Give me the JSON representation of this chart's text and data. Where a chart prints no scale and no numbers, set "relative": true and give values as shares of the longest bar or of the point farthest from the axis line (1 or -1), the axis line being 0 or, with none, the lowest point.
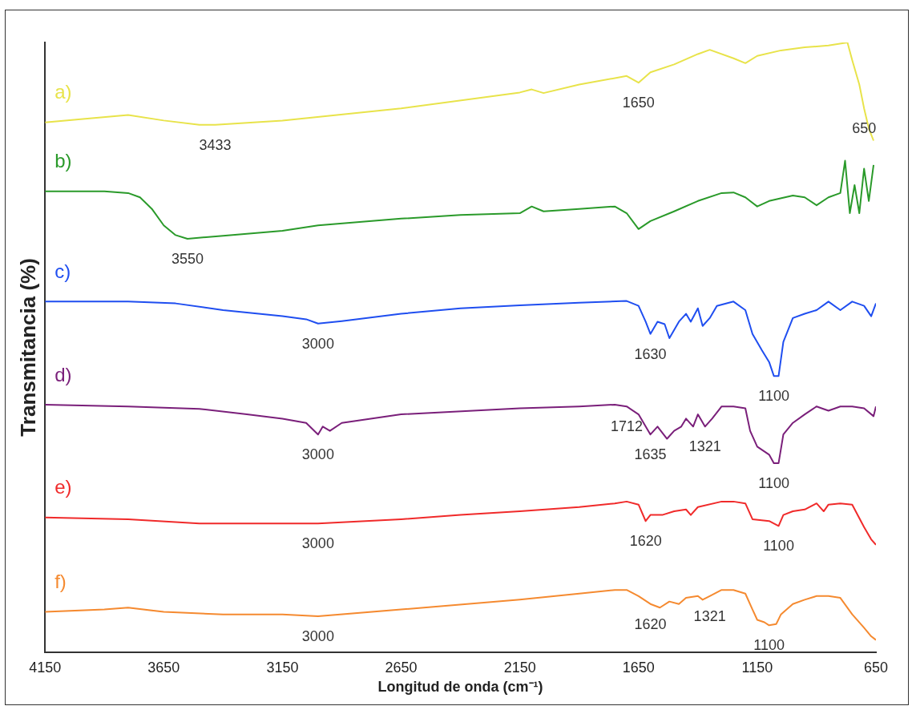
{
  "chart_data": {
    "type": "line",
    "relative": true,
    "xlabel": "Longitud de onda (cm⁻¹)",
    "ylabel": "Transmitancia (%)",
    "xlim": [
      4150,
      650
    ],
    "xticks": [
      4150,
      3650,
      3150,
      2650,
      2150,
      1650,
      1150,
      650
    ],
    "legend": false,
    "grid": false,
    "marker": "none",
    "line_style": "solid",
    "series": [
      {
        "name": "a)",
        "color": "#e8e34a",
        "x": [
          4150,
          4000,
          3800,
          3650,
          3500,
          3433,
          3150,
          2650,
          2150,
          2100,
          2050,
          1900,
          1700,
          1650,
          1600,
          1500,
          1400,
          1350,
          1250,
          1200,
          1150,
          1050,
          950,
          850,
          770,
          750,
          720,
          700,
          680,
          660
        ],
        "values": [
          0.869,
          0.874,
          0.881,
          0.872,
          0.865,
          0.865,
          0.872,
          0.892,
          0.918,
          0.923,
          0.917,
          0.931,
          0.945,
          0.934,
          0.951,
          0.964,
          0.981,
          0.988,
          0.974,
          0.966,
          0.978,
          0.987,
          0.992,
          0.995,
          1.0,
          0.971,
          0.931,
          0.892,
          0.859,
          0.839
        ]
      },
      {
        "name": "b)",
        "color": "#2a9a2a",
        "x": [
          4150,
          3900,
          3800,
          3750,
          3700,
          3650,
          3600,
          3550,
          3400,
          3150,
          3000,
          2650,
          2400,
          2150,
          2100,
          2050,
          1900,
          1750,
          1700,
          1650,
          1600,
          1500,
          1400,
          1300,
          1250,
          1200,
          1150,
          1100,
          1000,
          950,
          900,
          850,
          800,
          780,
          760,
          740,
          720,
          700,
          680,
          660
        ],
        "values": [
          0.756,
          0.756,
          0.753,
          0.746,
          0.727,
          0.7,
          0.684,
          0.678,
          0.683,
          0.691,
          0.7,
          0.711,
          0.717,
          0.72,
          0.731,
          0.723,
          0.727,
          0.731,
          0.72,
          0.694,
          0.707,
          0.723,
          0.74,
          0.753,
          0.754,
          0.746,
          0.731,
          0.74,
          0.749,
          0.746,
          0.733,
          0.746,
          0.753,
          0.806,
          0.72,
          0.766,
          0.72,
          0.793,
          0.74,
          0.799
        ]
      },
      {
        "name": "c)",
        "color": "#1f4ef0",
        "x": [
          4150,
          3800,
          3600,
          3400,
          3150,
          3050,
          3000,
          2900,
          2650,
          2400,
          2150,
          1900,
          1700,
          1650,
          1620,
          1600,
          1570,
          1540,
          1520,
          1480,
          1450,
          1430,
          1400,
          1380,
          1350,
          1320,
          1250,
          1200,
          1170,
          1130,
          1100,
          1080,
          1060,
          1040,
          1000,
          950,
          900,
          850,
          800,
          750,
          700,
          670,
          650
        ],
        "values": [
          0.575,
          0.575,
          0.572,
          0.561,
          0.551,
          0.546,
          0.539,
          0.543,
          0.555,
          0.564,
          0.569,
          0.573,
          0.576,
          0.568,
          0.542,
          0.522,
          0.542,
          0.538,
          0.515,
          0.542,
          0.555,
          0.542,
          0.564,
          0.535,
          0.548,
          0.568,
          0.575,
          0.561,
          0.522,
          0.495,
          0.476,
          0.453,
          0.453,
          0.509,
          0.548,
          0.555,
          0.561,
          0.575,
          0.561,
          0.575,
          0.568,
          0.551,
          0.572
        ]
      },
      {
        "name": "d)",
        "color": "#7a1f7a",
        "x": [
          4150,
          3800,
          3500,
          3300,
          3150,
          3050,
          3000,
          2980,
          2950,
          2900,
          2650,
          2150,
          1900,
          1750,
          1700,
          1650,
          1600,
          1570,
          1530,
          1500,
          1470,
          1450,
          1420,
          1400,
          1370,
          1340,
          1300,
          1250,
          1200,
          1180,
          1150,
          1100,
          1080,
          1060,
          1040,
          1000,
          950,
          900,
          850,
          800,
          750,
          700,
          660,
          650
        ],
        "values": [
          0.406,
          0.403,
          0.399,
          0.39,
          0.383,
          0.376,
          0.357,
          0.37,
          0.363,
          0.376,
          0.39,
          0.4,
          0.403,
          0.406,
          0.403,
          0.39,
          0.357,
          0.37,
          0.35,
          0.363,
          0.37,
          0.383,
          0.37,
          0.39,
          0.37,
          0.383,
          0.403,
          0.403,
          0.4,
          0.363,
          0.337,
          0.324,
          0.31,
          0.31,
          0.357,
          0.376,
          0.39,
          0.403,
          0.396,
          0.403,
          0.403,
          0.4,
          0.387,
          0.403
        ]
      },
      {
        "name": "e)",
        "color": "#f02a2a",
        "x": [
          4150,
          3800,
          3500,
          3150,
          3000,
          2650,
          2400,
          2150,
          1900,
          1750,
          1700,
          1650,
          1620,
          1600,
          1550,
          1500,
          1450,
          1430,
          1400,
          1300,
          1250,
          1200,
          1170,
          1100,
          1060,
          1040,
          1000,
          950,
          900,
          870,
          850,
          800,
          750,
          700,
          670,
          650
        ],
        "values": [
          0.221,
          0.218,
          0.211,
          0.211,
          0.211,
          0.218,
          0.225,
          0.231,
          0.238,
          0.244,
          0.247,
          0.242,
          0.215,
          0.225,
          0.225,
          0.231,
          0.234,
          0.225,
          0.238,
          0.247,
          0.247,
          0.244,
          0.218,
          0.215,
          0.207,
          0.225,
          0.231,
          0.234,
          0.244,
          0.231,
          0.242,
          0.244,
          0.242,
          0.205,
          0.185,
          0.176
        ]
      },
      {
        "name": "f)",
        "color": "#f58a30",
        "x": [
          4150,
          3900,
          3800,
          3650,
          3400,
          3150,
          3000,
          2650,
          2150,
          1900,
          1750,
          1700,
          1650,
          1600,
          1560,
          1520,
          1480,
          1450,
          1400,
          1380,
          1350,
          1300,
          1250,
          1200,
          1170,
          1150,
          1120,
          1100,
          1070,
          1050,
          1000,
          950,
          900,
          850,
          800,
          750,
          700,
          670,
          650
        ],
        "values": [
          0.066,
          0.07,
          0.073,
          0.066,
          0.062,
          0.062,
          0.059,
          0.07,
          0.086,
          0.096,
          0.102,
          0.102,
          0.092,
          0.079,
          0.073,
          0.083,
          0.079,
          0.089,
          0.092,
          0.086,
          0.092,
          0.102,
          0.102,
          0.096,
          0.07,
          0.053,
          0.049,
          0.044,
          0.046,
          0.062,
          0.079,
          0.086,
          0.092,
          0.092,
          0.089,
          0.062,
          0.04,
          0.026,
          0.02
        ]
      }
    ],
    "annotations": [
      {
        "text": "3433",
        "x": 3433,
        "y": 0.865
      },
      {
        "text": "1650",
        "x": 1650,
        "y": 0.934
      },
      {
        "text": "650",
        "x": 700,
        "y": 0.892
      },
      {
        "text": "3550",
        "x": 3550,
        "y": 0.678
      },
      {
        "text": "3000",
        "x": 3000,
        "y": 0.539
      },
      {
        "text": "1630",
        "x": 1600,
        "y": 0.522
      },
      {
        "text": "1100",
        "x": 1080,
        "y": 0.453
      },
      {
        "text": "1712",
        "x": 1700,
        "y": 0.403
      },
      {
        "text": "3000",
        "x": 3000,
        "y": 0.357
      },
      {
        "text": "1635",
        "x": 1600,
        "y": 0.357
      },
      {
        "text": "1321",
        "x": 1370,
        "y": 0.37
      },
      {
        "text": "1100",
        "x": 1080,
        "y": 0.31
      },
      {
        "text": "3000",
        "x": 3000,
        "y": 0.211
      },
      {
        "text": "1620",
        "x": 1620,
        "y": 0.215
      },
      {
        "text": "1100",
        "x": 1060,
        "y": 0.207
      },
      {
        "text": "3000",
        "x": 3000,
        "y": 0.059
      },
      {
        "text": "1620",
        "x": 1600,
        "y": 0.079
      },
      {
        "text": "1321",
        "x": 1350,
        "y": 0.092
      },
      {
        "text": "1100",
        "x": 1100,
        "y": 0.044
      }
    ]
  }
}
